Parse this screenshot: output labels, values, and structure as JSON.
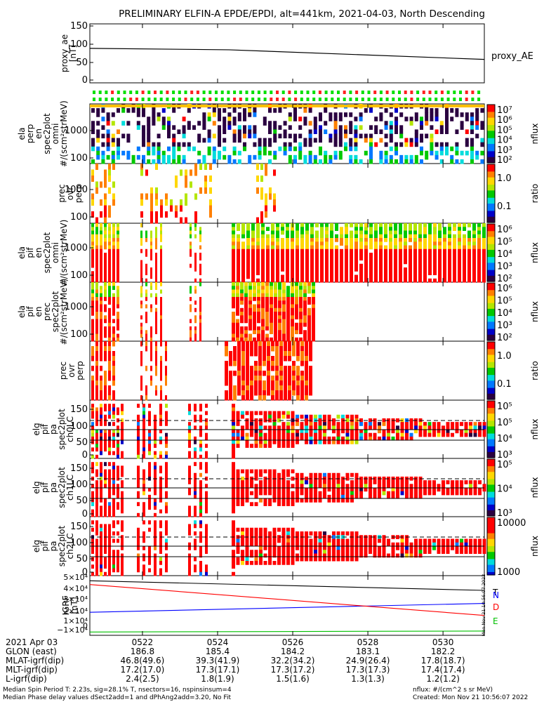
{
  "title": "PRELIMINARY ELFIN-A EPDE/EPDI, alt=441km, 2021-04-03, North Descending",
  "chart_data": [
    {
      "type": "line",
      "panel": "proxy_ae",
      "ylabel_lines": [
        "proxy_ae",
        "[nT]"
      ],
      "yticks": [
        "150",
        "100",
        "50",
        "0"
      ],
      "ylim": [
        0,
        150
      ],
      "x": [
        "0520.6",
        "0524.3",
        "0531.1"
      ],
      "series": [
        {
          "name": "proxy_AE",
          "values": [
            89,
            85,
            58
          ]
        }
      ],
      "right_label": "proxy_AE"
    },
    {
      "type": "heatmap",
      "panel": "ela-perp",
      "ylabel_lines": [
        "ela",
        "perp",
        "en",
        "spec2plot",
        "omni",
        "#/(scm²strMeV)"
      ],
      "yticks": [
        "1000",
        "100"
      ],
      "colorbar": {
        "ticks": [
          "10⁷",
          "10⁶",
          "10⁵",
          "10⁴",
          "10³",
          "10²"
        ],
        "label": "nflux"
      }
    },
    {
      "type": "heatmap",
      "panel": "prec-ovr-perp-1",
      "ylabel_lines": [
        "prec",
        "ovr",
        "perp"
      ],
      "yticks": [
        "1000",
        "100"
      ],
      "colorbar": {
        "ticks": [
          "1.0",
          "0.1"
        ],
        "label": "ratio"
      }
    },
    {
      "type": "heatmap",
      "panel": "ela-pif-omni",
      "ylabel_lines": [
        "ela",
        "pif",
        "en",
        "spec2plot",
        "omni",
        "#/(scm²strMeV)"
      ],
      "yticks": [
        "1000",
        "100"
      ],
      "colorbar": {
        "ticks": [
          "10⁶",
          "10⁵",
          "10⁴",
          "10³",
          "10²"
        ],
        "label": "nflux"
      }
    },
    {
      "type": "heatmap",
      "panel": "ela-pif-prec",
      "ylabel_lines": [
        "ela",
        "pif",
        "en",
        "prec",
        "spec2plot",
        "#/(scm²strMeV)"
      ],
      "yticks": [
        "1000",
        "100"
      ],
      "colorbar": {
        "ticks": [
          "10⁶",
          "10⁵",
          "10⁴",
          "10³",
          "10²"
        ],
        "label": "nflux"
      }
    },
    {
      "type": "heatmap",
      "panel": "prec-ovr-perp-2",
      "ylabel_lines": [
        "prec",
        "ovr",
        "perp"
      ],
      "yticks": [
        "1000",
        "100"
      ],
      "colorbar": {
        "ticks": [
          "1.0",
          "0.1"
        ],
        "label": "ratio"
      }
    },
    {
      "type": "heatmap",
      "panel": "pa-ch0",
      "ylabel_lines": [
        "elg",
        "pif",
        "pa",
        "spec2plot",
        "ch0LC"
      ],
      "yticks": [
        "150",
        "100",
        "50",
        "0"
      ],
      "colorbar": {
        "ticks": [
          "10⁵",
          "10⁵",
          "10⁴",
          "10³"
        ],
        "label": "nflux"
      }
    },
    {
      "type": "heatmap",
      "panel": "pa-ch1",
      "ylabel_lines": [
        "elg",
        "pif",
        "pa",
        "spec2plot",
        "ch1LC"
      ],
      "yticks": [
        "150",
        "100",
        "50",
        "0"
      ],
      "colorbar": {
        "ticks": [
          "10⁵",
          "10⁴",
          "10³"
        ],
        "label": "nflux"
      }
    },
    {
      "type": "heatmap",
      "panel": "pa-ch2",
      "ylabel_lines": [
        "elg",
        "pif",
        "pa",
        "spec2plot",
        "ch2LC"
      ],
      "yticks": [
        "150",
        "100",
        "50",
        "0"
      ],
      "colorbar": {
        "ticks": [
          "10000",
          "1000"
        ],
        "label": "nflux"
      }
    },
    {
      "type": "line",
      "panel": "igrf",
      "ylabel_lines": [
        "IGRF",
        "[nT]"
      ],
      "yticks": [
        "5×10⁴",
        "4×10⁴",
        "3×10⁴",
        "2×10⁴",
        "1×10⁴",
        "0",
        "−1×10⁴"
      ],
      "ylim": [
        -10000,
        50000
      ],
      "x": [
        "0520.6",
        "0531.1"
      ],
      "series": [
        {
          "name": "T",
          "color": "#000000",
          "values": [
            46500,
            37500
          ]
        },
        {
          "name": "N",
          "color": "#0000ff",
          "values": [
            17000,
            25300
          ]
        },
        {
          "name": "D",
          "color": "#ff0000",
          "values": [
            43000,
            14000
          ]
        },
        {
          "name": "E",
          "color": "#00c000",
          "values": [
            -1500,
            -600
          ]
        }
      ],
      "side_stamp": "Mon Nov 21 10:56:07 2022"
    }
  ],
  "orbit_table": {
    "labels": [
      "2021 Apr 03",
      "GLON (east)",
      "MLAT-igrf(dip)",
      "MLT-igrf(dip)",
      "L-igrf(dip)"
    ],
    "columns": [
      {
        "time": "0522",
        "values": [
          "186.8",
          "46.8(49.6)",
          "17.2(17.0)",
          "2.4(2.5)"
        ]
      },
      {
        "time": "0524",
        "values": [
          "185.4",
          "39.3(41.9)",
          "17.3(17.1)",
          "1.8(1.9)"
        ]
      },
      {
        "time": "0526",
        "values": [
          "184.2",
          "32.2(34.2)",
          "17.3(17.2)",
          "1.5(1.6)"
        ]
      },
      {
        "time": "0528",
        "values": [
          "183.1",
          "24.9(26.4)",
          "17.3(17.3)",
          "1.3(1.3)"
        ]
      },
      {
        "time": "0530",
        "values": [
          "182.2",
          "17.8(18.7)",
          "17.4(17.4)",
          "1.2(1.2)"
        ]
      }
    ]
  },
  "footer": {
    "left1": "Median Spin Period T: 2.23s, sig=28.1% T, nsectors=16, nspinsinsum=4",
    "left2": "Median Phase delay values dSect2add=1 and dPhAng2add=3.20, No Fit",
    "right1": "nflux: #/(cm^2 s sr MeV)",
    "right2": "Created: Mon Nov 21 10:56:07 2022"
  },
  "colors": {
    "spectrum": [
      "#2a0040",
      "#0000c8",
      "#0078ff",
      "#00dcdc",
      "#00c800",
      "#b4e600",
      "#ffd700",
      "#ff8000",
      "#ff0000"
    ]
  }
}
